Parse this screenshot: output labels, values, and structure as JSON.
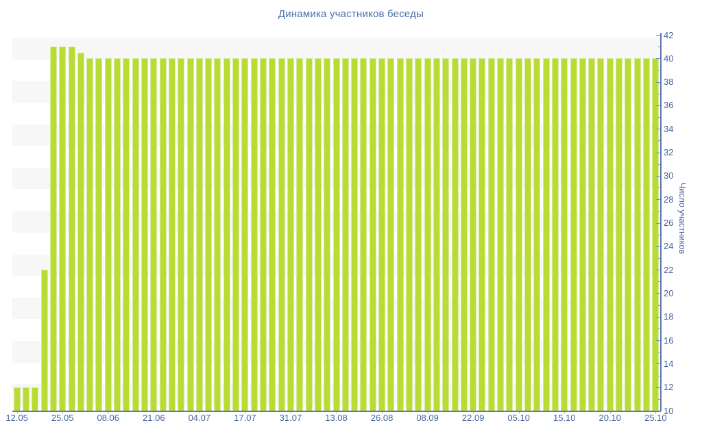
{
  "title": "Динамика участников беседы",
  "chart_data": {
    "type": "bar",
    "title": "Динамика участников беседы",
    "ylabel": "Число участников",
    "xlabel": "",
    "ylim": [
      10,
      42
    ],
    "y_tick_step": 2,
    "y_minor_tick_step": 1,
    "grid": "horizontal-bands",
    "legend": "none",
    "bar_count": 71,
    "values": [
      12,
      12,
      12,
      22,
      41,
      41,
      41,
      40.5,
      40,
      40,
      40,
      40,
      40,
      40,
      40,
      40,
      40,
      40,
      40,
      40,
      40,
      40,
      40,
      40,
      40,
      40,
      40,
      40,
      40,
      40,
      40,
      40,
      40,
      40,
      40,
      40,
      40,
      40,
      40,
      40,
      40,
      40,
      40,
      40,
      40,
      40,
      40,
      40,
      40,
      40,
      40,
      40,
      40,
      40,
      40,
      40,
      40,
      40,
      40,
      40,
      40,
      40,
      40,
      40,
      40,
      40,
      40,
      40,
      40,
      40,
      40
    ],
    "x_tick_labels": [
      "12.05",
      "25.05",
      "08.06",
      "21.06",
      "04.07",
      "17.07",
      "31.07",
      "13.08",
      "26.08",
      "08.09",
      "22.09",
      "05.10",
      "15.10",
      "20.10",
      "25.10"
    ],
    "x_tick_bar_indices": [
      0,
      5,
      10,
      15,
      20,
      25,
      30,
      35,
      40,
      45,
      50,
      55,
      60,
      65,
      70
    ],
    "colors": {
      "bar_fill": "#b8dc34",
      "bar_edge": "#d9eb9e",
      "axis_line": "#5c79b4",
      "tick": "#7d91bf",
      "tick_label": "#44639c",
      "title": "#4a6ea9",
      "band": "#f7f7f8",
      "background": "#ffffff"
    }
  }
}
